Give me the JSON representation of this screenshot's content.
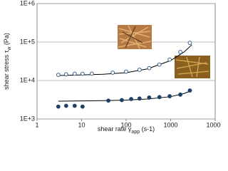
{
  "chart_data": {
    "type": "scatter",
    "xlabel": [
      "shear rate γ",
      "app",
      " (s-1)"
    ],
    "ylabel": [
      "shear stress τ",
      "w",
      " (Pa)"
    ],
    "xscale": "log",
    "yscale": "log",
    "grid": true,
    "xlim": [
      1,
      10000
    ],
    "xticks": [
      1,
      10,
      100,
      1000,
      10000
    ],
    "ylim": [
      1000,
      1000000
    ],
    "yticks": [
      {
        "value": 1000,
        "label": "1E+3"
      },
      {
        "value": 10000,
        "label": "1E+4"
      },
      {
        "value": 100000,
        "label": "1E+5"
      },
      {
        "value": 1000000,
        "label": "1E+6"
      }
    ],
    "series": [
      {
        "marker": "open",
        "color": "#3a5f8a",
        "x": [
          3,
          4.5,
          7,
          10.5,
          17,
          50,
          100,
          200,
          330,
          560,
          950,
          1650,
          2700
        ],
        "values": [
          14000,
          14500,
          15000,
          15000,
          15000,
          16000,
          17000,
          19000,
          21000,
          26000,
          35000,
          55000,
          95000
        ],
        "fit_x": [
          3,
          10,
          30,
          100,
          300,
          1000,
          2000,
          3000
        ],
        "fit": [
          13500,
          14000,
          14500,
          16000,
          20000,
          33000,
          55000,
          85000
        ]
      },
      {
        "marker": "filled",
        "color": "#1f3f66",
        "x": [
          3,
          4.5,
          7,
          10.5,
          40,
          80,
          130,
          200,
          330,
          560,
          950,
          1650,
          2700
        ],
        "values": [
          2100,
          2200,
          2200,
          2100,
          3000,
          3100,
          3300,
          3400,
          3600,
          3700,
          3900,
          4300,
          5500
        ],
        "fit_x": [
          3,
          10,
          30,
          100,
          300,
          1000,
          2000,
          3000
        ],
        "fit": [
          2900,
          2950,
          3000,
          3100,
          3300,
          3800,
          4600,
          5500
        ]
      }
    ]
  }
}
